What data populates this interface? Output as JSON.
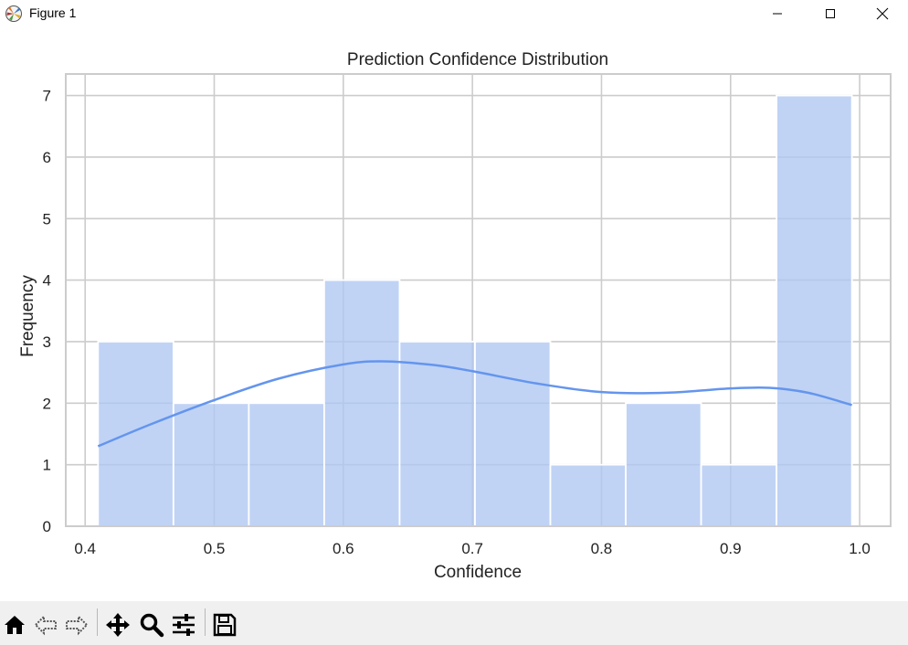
{
  "window": {
    "title": "Figure 1",
    "controls": [
      "minimize-icon",
      "maximize-icon",
      "close-icon"
    ]
  },
  "toolbar": {
    "buttons": [
      "home-icon",
      "back-icon",
      "forward-icon",
      "pan-icon",
      "zoom-icon",
      "configure-subplots-icon",
      "save-icon"
    ]
  },
  "colors": {
    "bar": "#aec7f2",
    "kde_line": "#6495ed",
    "grid": "#cccccc",
    "axis_border": "#cccccc"
  },
  "chart_data": {
    "type": "bar",
    "title": "Prediction Confidence Distribution",
    "xlabel": "Confidence",
    "ylabel": "Frequency",
    "xlim": [
      0.385,
      1.024
    ],
    "ylim": [
      0,
      7.35
    ],
    "xticks": [
      0.4,
      0.5,
      0.6,
      0.7,
      0.8,
      0.9,
      1.0
    ],
    "xtick_labels": [
      "0.4",
      "0.5",
      "0.6",
      "0.7",
      "0.8",
      "0.9",
      "1.0"
    ],
    "yticks": [
      0,
      1,
      2,
      3,
      4,
      5,
      6,
      7
    ],
    "ytick_labels": [
      "0",
      "1",
      "2",
      "3",
      "4",
      "5",
      "6",
      "7"
    ],
    "grid": true,
    "bins": {
      "start": 0.41,
      "end": 0.994,
      "counts": [
        3,
        2,
        2,
        4,
        3,
        3,
        1,
        2,
        1,
        7
      ]
    },
    "kde_line": {
      "x": [
        0.41,
        0.45,
        0.5,
        0.55,
        0.6,
        0.63,
        0.67,
        0.7,
        0.75,
        0.8,
        0.85,
        0.9,
        0.93,
        0.96,
        0.994
      ],
      "y": [
        1.3,
        1.65,
        2.05,
        2.4,
        2.63,
        2.68,
        2.62,
        2.52,
        2.32,
        2.18,
        2.17,
        2.24,
        2.25,
        2.17,
        1.97
      ]
    }
  }
}
